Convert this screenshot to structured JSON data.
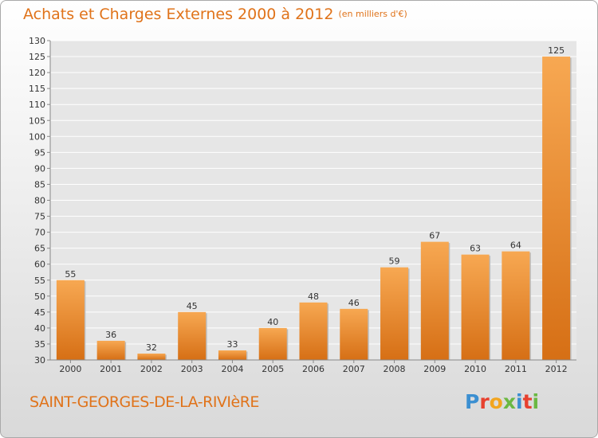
{
  "header": {
    "title": "Achats et Charges Externes 2000 à 2012",
    "unit": "(en milliers d'€)"
  },
  "footer": {
    "commune": "SAINT-GEORGES-DE-LA-RIVIèRE",
    "logo_letters": [
      "P",
      "r",
      "o",
      "x",
      "i",
      "t",
      "i"
    ],
    "logo_colors": [
      "#3b8fd1",
      "#e7412f",
      "#f2a51f",
      "#6bb843",
      "#3b8fd1",
      "#e7412f",
      "#6bb843"
    ]
  },
  "colors": {
    "bar_light": "#f7a852",
    "bar_dark": "#d66f15",
    "title": "#e0731a"
  },
  "chart_data": {
    "type": "bar",
    "categories": [
      "2000",
      "2001",
      "2002",
      "2003",
      "2004",
      "2005",
      "2006",
      "2007",
      "2008",
      "2009",
      "2010",
      "2011",
      "2012"
    ],
    "values": [
      55,
      36,
      32,
      45,
      33,
      40,
      48,
      46,
      59,
      67,
      63,
      64,
      125
    ],
    "value_labels": [
      "55",
      "36",
      "32",
      "45",
      "33",
      "40",
      "48",
      "46",
      "59",
      "67",
      "63",
      "64",
      "125"
    ],
    "title": "Achats et Charges Externes 2000 à 2012",
    "xlabel": "",
    "ylabel": "",
    "ylim": [
      30,
      130
    ],
    "yticks": [
      "30",
      "35",
      "40",
      "45",
      "50",
      "55",
      "60",
      "65",
      "70",
      "75",
      "80",
      "85",
      "90",
      "95",
      "100",
      "105",
      "110",
      "115",
      "120",
      "125",
      "130"
    ],
    "grid": true,
    "legend": "none"
  }
}
